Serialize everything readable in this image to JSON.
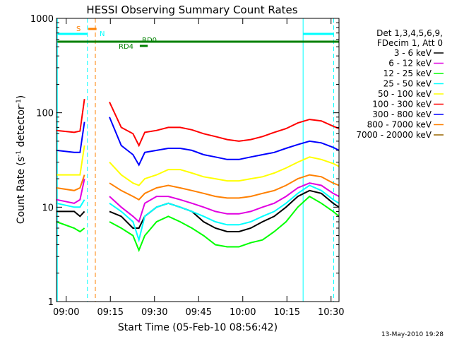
{
  "chart_data": {
    "type": "line",
    "title": "HESSI Observing Summary Count Rates",
    "xlabel": "Start Time (05-Feb-10 08:56:42)",
    "ylabel_main": "Count Rate (s",
    "ylabel_sup1": "-1",
    "ylabel_mid": " detector",
    "ylabel_sup2": "-1",
    "ylabel_end": ")",
    "y_scale": "log",
    "ylim": [
      1,
      1000
    ],
    "xlim_minutes": [
      0,
      96
    ],
    "x_ticks": [
      {
        "minute": 3.3,
        "label": "09:00"
      },
      {
        "minute": 18.3,
        "label": "09:15"
      },
      {
        "minute": 33.3,
        "label": "09:30"
      },
      {
        "minute": 48.3,
        "label": "09:45"
      },
      {
        "minute": 63.3,
        "label": "10:00"
      },
      {
        "minute": 78.3,
        "label": "10:15"
      },
      {
        "minute": 93.3,
        "label": "10:30"
      }
    ],
    "y_ticks": [
      {
        "value": 1,
        "label": "1"
      },
      {
        "value": 10,
        "label": "10"
      },
      {
        "value": 100,
        "label": "100"
      },
      {
        "value": 1000,
        "label": "1000"
      }
    ],
    "legend_header": [
      "Det 1,3,4,5,6,9,",
      "FDecim 1, Att 0"
    ],
    "legend_position": "right",
    "timestamp": "13-May-2010 19:28",
    "x_sample_minutes": [
      0,
      6,
      8,
      9.5,
      11,
      12,
      13.5,
      15.5,
      18,
      22,
      26,
      28,
      30,
      34,
      38,
      42,
      46,
      50,
      54,
      58,
      62,
      66,
      70,
      74,
      78,
      82,
      86,
      90,
      94,
      96
    ],
    "series": [
      {
        "name": "3 - 6 keV",
        "color": "#000000",
        "values": [
          9,
          9,
          8,
          9,
          null,
          null,
          null,
          null,
          9,
          8,
          6,
          6,
          8,
          10,
          11,
          10,
          9,
          7,
          6,
          5.5,
          5.5,
          6,
          7,
          8,
          10,
          13,
          15,
          14,
          11,
          10
        ]
      },
      {
        "name": "6 - 12 keV",
        "color": "#e100e1",
        "values": [
          12,
          11,
          12,
          20,
          null,
          null,
          null,
          null,
          13,
          10,
          8,
          7,
          11,
          13,
          13,
          12,
          11,
          10,
          9,
          8.5,
          8.5,
          9,
          10,
          11,
          13,
          16,
          18,
          17,
          14,
          13
        ]
      },
      {
        "name": "12 - 25 keV",
        "color": "#00ff00",
        "values": [
          7,
          6,
          5.5,
          6,
          null,
          null,
          null,
          null,
          7,
          6,
          5,
          3.5,
          5,
          7,
          8,
          7,
          6,
          5,
          4,
          3.8,
          3.8,
          4.2,
          4.5,
          5.5,
          7,
          10,
          13,
          11,
          9,
          8
        ]
      },
      {
        "name": "25 - 50 keV",
        "color": "#00ffff",
        "values": [
          11,
          10,
          10,
          12,
          null,
          null,
          null,
          null,
          11,
          9,
          7,
          4.5,
          8,
          10,
          11,
          10,
          9,
          8,
          7,
          6.5,
          6.5,
          7,
          8,
          9,
          11,
          14,
          17,
          15,
          12,
          11
        ]
      },
      {
        "name": "50 - 100 keV",
        "color": "#ffff00",
        "values": [
          22,
          22,
          22,
          45,
          null,
          null,
          null,
          null,
          30,
          22,
          18,
          17,
          20,
          22,
          25,
          25,
          23,
          21,
          20,
          19,
          19,
          20,
          21,
          23,
          26,
          30,
          34,
          32,
          29,
          27
        ]
      },
      {
        "name": "100 - 300 keV",
        "color": "#ff0000",
        "values": [
          65,
          62,
          64,
          140,
          null,
          null,
          null,
          null,
          130,
          70,
          60,
          45,
          62,
          65,
          70,
          70,
          66,
          60,
          56,
          52,
          50,
          52,
          56,
          62,
          68,
          78,
          85,
          82,
          72,
          68
        ]
      },
      {
        "name": "300 - 800 keV",
        "color": "#0000ff",
        "values": [
          40,
          38,
          38,
          80,
          null,
          null,
          null,
          null,
          90,
          45,
          36,
          28,
          38,
          40,
          42,
          42,
          40,
          36,
          34,
          32,
          32,
          34,
          36,
          38,
          42,
          46,
          50,
          48,
          43,
          40
        ]
      },
      {
        "name": "800 - 7000 keV",
        "color": "#ff8000",
        "values": [
          16,
          15,
          16,
          22,
          null,
          null,
          null,
          null,
          18,
          15,
          13,
          12,
          14,
          16,
          17,
          16,
          15,
          14,
          13,
          12.5,
          12.5,
          13,
          14,
          15,
          17,
          20,
          22,
          21,
          18,
          17
        ]
      },
      {
        "name": "7000 - 20000 keV",
        "color": "#996600",
        "values": [
          null,
          null,
          null,
          null,
          null,
          null,
          null,
          null,
          null,
          null,
          null,
          null,
          null,
          null,
          null,
          null,
          null,
          null,
          null,
          null,
          null,
          null,
          null,
          null,
          null,
          null,
          null,
          null,
          null,
          null
        ]
      }
    ],
    "flags": {
      "saa_label": "S",
      "night_label": "N",
      "rd0_label": "RD0",
      "rd4_label": "RD4"
    },
    "vertical_markers": [
      {
        "minute": 0.3,
        "color": "#00ffff",
        "style": "solid"
      },
      {
        "minute": 10.5,
        "color": "#00ffff",
        "style": "dashed"
      },
      {
        "minute": 13.2,
        "color": "#ff8000",
        "style": "dashed"
      },
      {
        "minute": 83.8,
        "color": "#00ffff",
        "style": "solid"
      },
      {
        "minute": 94.2,
        "color": "#00ffff",
        "style": "dashed"
      }
    ]
  }
}
